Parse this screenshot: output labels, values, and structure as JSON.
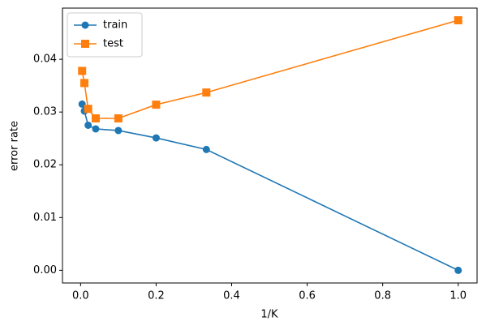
{
  "chart_data": {
    "type": "line",
    "xlabel": "1/K",
    "ylabel": "error rate",
    "xlim": [
      -0.048,
      1.05
    ],
    "ylim": [
      -0.0024,
      0.0497
    ],
    "xticks": [
      {
        "value": 0,
        "label": "0.0"
      },
      {
        "value": 0.2,
        "label": "0.2"
      },
      {
        "value": 0.4,
        "label": "0.4"
      },
      {
        "value": 0.6,
        "label": "0.6"
      },
      {
        "value": 0.8,
        "label": "0.8"
      },
      {
        "value": 1.0,
        "label": "1.0"
      }
    ],
    "yticks": [
      {
        "value": 0,
        "label": "0.00"
      },
      {
        "value": 0.01,
        "label": "0.01"
      },
      {
        "value": 0.02,
        "label": "0.02"
      },
      {
        "value": 0.03,
        "label": "0.03"
      },
      {
        "value": 0.04,
        "label": "0.04"
      }
    ],
    "legend": "upper left",
    "x": [
      0.004,
      0.01,
      0.02,
      0.04,
      0.1,
      0.2,
      0.333,
      1.0
    ],
    "series": [
      {
        "name": "train",
        "color": "#1f77b4",
        "marker": "circle",
        "values": [
          0.0315,
          0.0302,
          0.0275,
          0.0268,
          0.0265,
          0.0251,
          0.0229,
          0.0
        ]
      },
      {
        "name": "test",
        "color": "#ff7f0e",
        "marker": "square",
        "values": [
          0.0378,
          0.0355,
          0.0306,
          0.0288,
          0.0288,
          0.0314,
          0.0337,
          0.0474
        ]
      }
    ]
  }
}
